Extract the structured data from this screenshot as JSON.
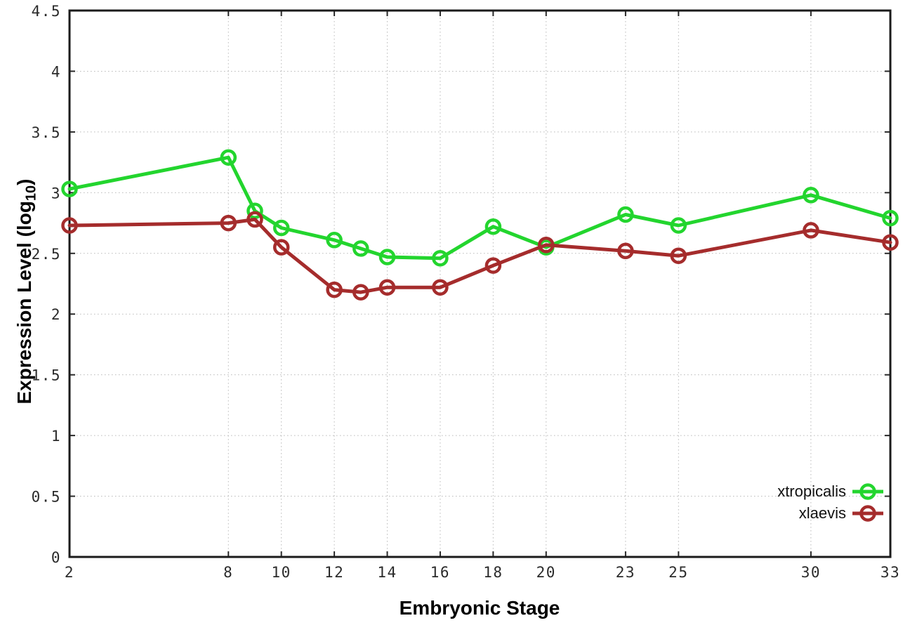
{
  "chart_data": {
    "type": "line",
    "title": "",
    "xlabel": "Embryonic Stage",
    "ylabel": "Expression Level (log10)",
    "x": [
      2,
      8,
      9,
      10,
      12,
      13,
      14,
      16,
      18,
      20,
      23,
      25,
      30,
      33
    ],
    "series": [
      {
        "name": "xtropicalis",
        "color": "#23d52e",
        "values": [
          3.03,
          3.29,
          2.85,
          2.71,
          2.61,
          2.54,
          2.47,
          2.46,
          2.72,
          2.55,
          2.82,
          2.73,
          2.98,
          2.79
        ]
      },
      {
        "name": "xlaevis",
        "color": "#a52c2c",
        "values": [
          2.73,
          2.75,
          2.78,
          2.55,
          2.2,
          2.18,
          2.22,
          2.22,
          2.4,
          2.57,
          2.52,
          2.48,
          2.69,
          2.59
        ]
      }
    ],
    "xlim": [
      2,
      33
    ],
    "ylim": [
      0,
      4.5
    ],
    "x_ticks": [
      2,
      8,
      10,
      12,
      14,
      16,
      18,
      20,
      23,
      25,
      30,
      33
    ],
    "x_tick_labels": [
      "2",
      "8",
      "10",
      "12",
      "14",
      "16",
      "18",
      "20",
      "23",
      "25",
      "30",
      "33"
    ],
    "y_ticks": [
      0,
      0.5,
      1,
      1.5,
      2,
      2.5,
      3,
      3.5,
      4,
      4.5
    ],
    "y_tick_labels": [
      "0",
      "0.5",
      "1",
      "1.5",
      "2",
      "2.5",
      "3",
      "3.5",
      "4",
      "4.5"
    ],
    "grid": true,
    "legend_position": "bottom-right",
    "marker": "open-circle",
    "line_width": 5
  },
  "axes": {
    "ylabel_prefix": "Expression Level (log",
    "ylabel_sub": "10",
    "ylabel_suffix": ")"
  },
  "colors": {
    "grid": "#b9b9b9",
    "border": "#1b1b1b",
    "tick_label": "#2b2b2b",
    "series_green": "#23d52e",
    "series_red": "#a52c2c"
  }
}
